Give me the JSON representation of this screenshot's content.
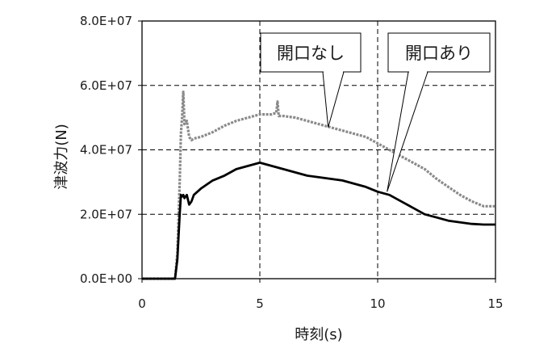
{
  "chart_data": {
    "type": "line",
    "title": "",
    "xlabel": "時刻(s)",
    "ylabel": "津波力(N)",
    "xlim": [
      0,
      15
    ],
    "ylim": [
      0,
      80000000
    ],
    "xticks": [
      0,
      5,
      10,
      15
    ],
    "yticks": [
      0,
      20000000,
      40000000,
      60000000,
      80000000
    ],
    "xtick_labels": [
      "0",
      "5",
      "10",
      "15"
    ],
    "ytick_labels": [
      "0.0E+00",
      "2.0E+07",
      "4.0E+07",
      "6.0E+07",
      "8.0E+07"
    ],
    "grid": true,
    "colors": {
      "series_1": "#8a8a8a",
      "series_2": "#000000",
      "grid": "#000000",
      "frame": "#000000"
    },
    "series": [
      {
        "name": "開口なし",
        "x": [
          0,
          1.2,
          1.4,
          1.5,
          1.6,
          1.65,
          1.7,
          1.75,
          1.8,
          1.9,
          2.0,
          2.1,
          2.2,
          2.5,
          3.0,
          3.5,
          4.0,
          4.5,
          5.0,
          5.5,
          5.7,
          5.75,
          5.8,
          6.0,
          6.5,
          7.0,
          7.5,
          8.0,
          8.5,
          9.0,
          9.5,
          10.0,
          10.5,
          11.0,
          11.5,
          12.0,
          12.5,
          13.0,
          13.5,
          14.0,
          14.5,
          15.0
        ],
        "y": [
          0,
          0,
          0,
          8000000,
          30000000,
          45000000,
          50000000,
          58000000,
          48000000,
          49000000,
          44000000,
          43000000,
          43500000,
          44000000,
          45500000,
          47500000,
          49000000,
          50000000,
          51000000,
          51000000,
          51500000,
          55000000,
          50500000,
          50500000,
          50000000,
          49000000,
          48000000,
          47000000,
          46000000,
          45000000,
          44000000,
          42000000,
          40000000,
          38000000,
          36000000,
          34000000,
          31000000,
          28500000,
          26000000,
          24000000,
          22500000,
          22500000
        ]
      },
      {
        "name": "開口あり",
        "x": [
          0,
          1.2,
          1.4,
          1.5,
          1.6,
          1.65,
          1.7,
          1.75,
          1.8,
          1.9,
          2.0,
          2.1,
          2.2,
          2.5,
          3.0,
          3.5,
          4.0,
          4.5,
          5.0,
          5.5,
          6.0,
          6.5,
          7.0,
          7.5,
          8.0,
          8.5,
          9.0,
          9.5,
          10.0,
          10.5,
          11.0,
          11.5,
          12.0,
          12.5,
          13.0,
          13.5,
          14.0,
          14.5,
          15.0
        ],
        "y": [
          0,
          0,
          0,
          6000000,
          20000000,
          26000000,
          25500000,
          26000000,
          25000000,
          26000000,
          23000000,
          24000000,
          26000000,
          28000000,
          30500000,
          32000000,
          34000000,
          35000000,
          36000000,
          35000000,
          34000000,
          33000000,
          32000000,
          31500000,
          31000000,
          30500000,
          29500000,
          28500000,
          27000000,
          26000000,
          24000000,
          22000000,
          20000000,
          19000000,
          18000000,
          17500000,
          17000000,
          16800000,
          16800000
        ]
      }
    ],
    "annotations": [
      {
        "text": "開口なし",
        "target_x": 7.9,
        "target_y": 47000000,
        "placement": "top-center"
      },
      {
        "text": "開口あり",
        "target_x": 10.4,
        "target_y": 27000000,
        "placement": "top-right"
      }
    ]
  }
}
